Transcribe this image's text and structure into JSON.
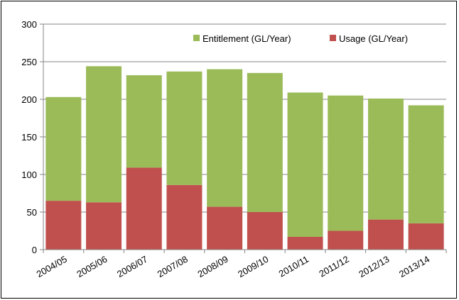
{
  "chart_data": {
    "type": "bar",
    "stacked": true,
    "categories": [
      "2004/05",
      "2005/06",
      "2006/07",
      "2007/08",
      "2008/09",
      "2009/10",
      "2010/11",
      "2011/12",
      "2012/13",
      "2013/14"
    ],
    "series": [
      {
        "name": "Usage (GL/Year)",
        "color": "#c0504d",
        "values": [
          65,
          63,
          109,
          86,
          57,
          50,
          17,
          25,
          40,
          35
        ]
      },
      {
        "name": "Entitlement (GL/Year)",
        "color": "#9bbb59",
        "values": [
          138,
          181,
          123,
          151,
          183,
          185,
          192,
          180,
          161,
          157
        ]
      }
    ],
    "totals": [
      203,
      244,
      232,
      237,
      240,
      235,
      209,
      205,
      201,
      192
    ],
    "ylim": [
      0,
      300
    ],
    "yticks": [
      0,
      50,
      100,
      150,
      200,
      250,
      300
    ],
    "grid": true,
    "legend": {
      "placement": "top-right",
      "order": [
        "Entitlement (GL/Year)",
        "Usage (GL/Year)"
      ]
    },
    "title": "",
    "xlabel": "",
    "ylabel": ""
  }
}
